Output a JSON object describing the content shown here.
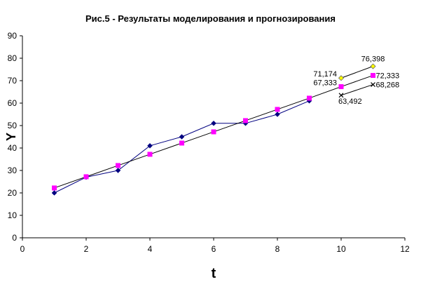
{
  "chart_data": {
    "type": "line",
    "title": "Рис.5 - Результаты моделирования и прогнозирования",
    "xlabel": "t",
    "ylabel": "Y",
    "xlim": [
      0,
      12
    ],
    "ylim": [
      0,
      90
    ],
    "xticks": [
      0,
      2,
      4,
      6,
      8,
      10,
      12
    ],
    "yticks": [
      0,
      10,
      20,
      30,
      40,
      50,
      60,
      70,
      80,
      90
    ],
    "grid": false,
    "legend": "none",
    "series": [
      {
        "id": "actual",
        "color": "#000080",
        "marker": "diamond",
        "points": [
          [
            1,
            20
          ],
          [
            2,
            27
          ],
          [
            3,
            30
          ],
          [
            4,
            41
          ],
          [
            5,
            45
          ],
          [
            6,
            51
          ],
          [
            7,
            51
          ],
          [
            8,
            55
          ],
          [
            9,
            61
          ]
        ]
      },
      {
        "id": "model",
        "color": "#000000",
        "marker_color": "#ff00ff",
        "marker": "square",
        "points": [
          [
            1,
            22.2
          ],
          [
            2,
            27.2
          ],
          [
            3,
            32.2
          ],
          [
            4,
            37.2
          ],
          [
            5,
            42.2
          ],
          [
            6,
            47.2
          ],
          [
            7,
            52.2
          ],
          [
            8,
            57.2
          ],
          [
            9,
            62.2
          ],
          [
            10,
            67.333
          ],
          [
            11,
            72.333
          ]
        ]
      },
      {
        "id": "upper",
        "color": "#000000",
        "marker_color": "#ffff00",
        "marker": "diamond",
        "points": [
          [
            10,
            71.174
          ],
          [
            11,
            76.398
          ]
        ]
      },
      {
        "id": "lower",
        "color": "#000000",
        "marker": "x",
        "points": [
          [
            10,
            63.492
          ],
          [
            11,
            68.268
          ]
        ]
      }
    ],
    "annotations": [
      {
        "text": "76,398",
        "x": 11,
        "y": 76.398,
        "pos": "above"
      },
      {
        "text": "71,174",
        "x": 10,
        "y": 71.174,
        "pos": "left"
      },
      {
        "text": "72,333",
        "x": 11,
        "y": 72.333,
        "pos": "right"
      },
      {
        "text": "67,333",
        "x": 10,
        "y": 67.333,
        "pos": "left"
      },
      {
        "text": "68,268",
        "x": 11,
        "y": 68.268,
        "pos": "right"
      },
      {
        "text": "63,492",
        "x": 10,
        "y": 63.492,
        "pos": "below"
      }
    ]
  }
}
